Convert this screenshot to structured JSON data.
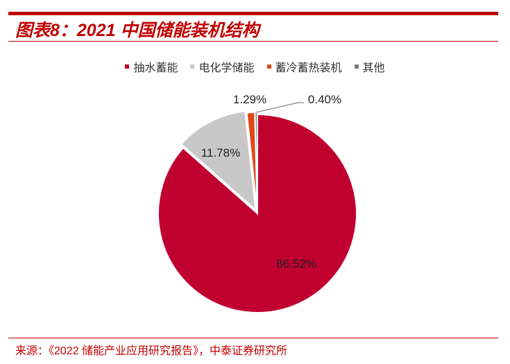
{
  "title": "图表8：2021 中国储能装机结构",
  "source": "来源：《2022 储能产业应用研究报告》，中泰证券研究所",
  "chart_data": {
    "type": "pie",
    "title": "",
    "legend_position": "top",
    "categories": [
      "抽水蓄能",
      "电化学储能",
      "蓄冷蓄热装机",
      "其他"
    ],
    "values": [
      86.52,
      11.78,
      1.29,
      0.4
    ],
    "labels": [
      "86.52%",
      "11.78%",
      "1.29%",
      "0.40%"
    ],
    "colors": [
      "#c0002f",
      "#c8c8c8",
      "#e0481a",
      "#7f7f7f"
    ]
  }
}
